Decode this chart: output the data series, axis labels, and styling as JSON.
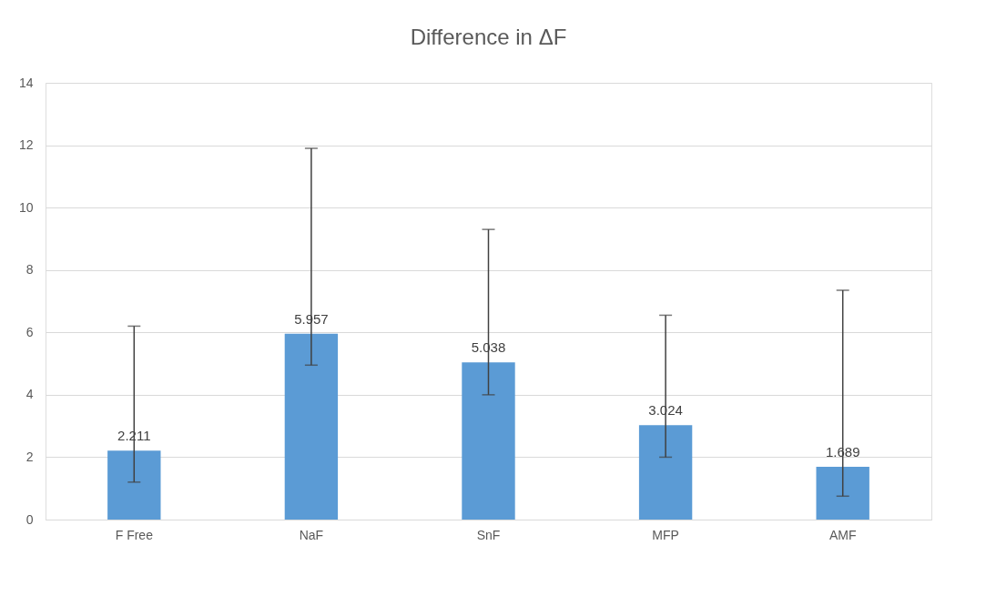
{
  "chart_data": {
    "type": "bar",
    "title": "Difference in ΔF",
    "categories": [
      "F Free",
      "NaF",
      "SnF",
      "MFP",
      "AMF"
    ],
    "values": [
      2.211,
      5.957,
      5.038,
      3.024,
      1.689
    ],
    "color": "#5b9bd5",
    "errors": [
      [
        1.2,
        6.2
      ],
      [
        4.95,
        11.9
      ],
      [
        4.0,
        9.3
      ],
      [
        2.0,
        6.55
      ],
      [
        0.75,
        7.35
      ]
    ],
    "data_labels": true,
    "ylim": [
      0,
      14
    ],
    "yticks": [
      0,
      2,
      4,
      6,
      8,
      10,
      12,
      14
    ],
    "grid": "y"
  }
}
